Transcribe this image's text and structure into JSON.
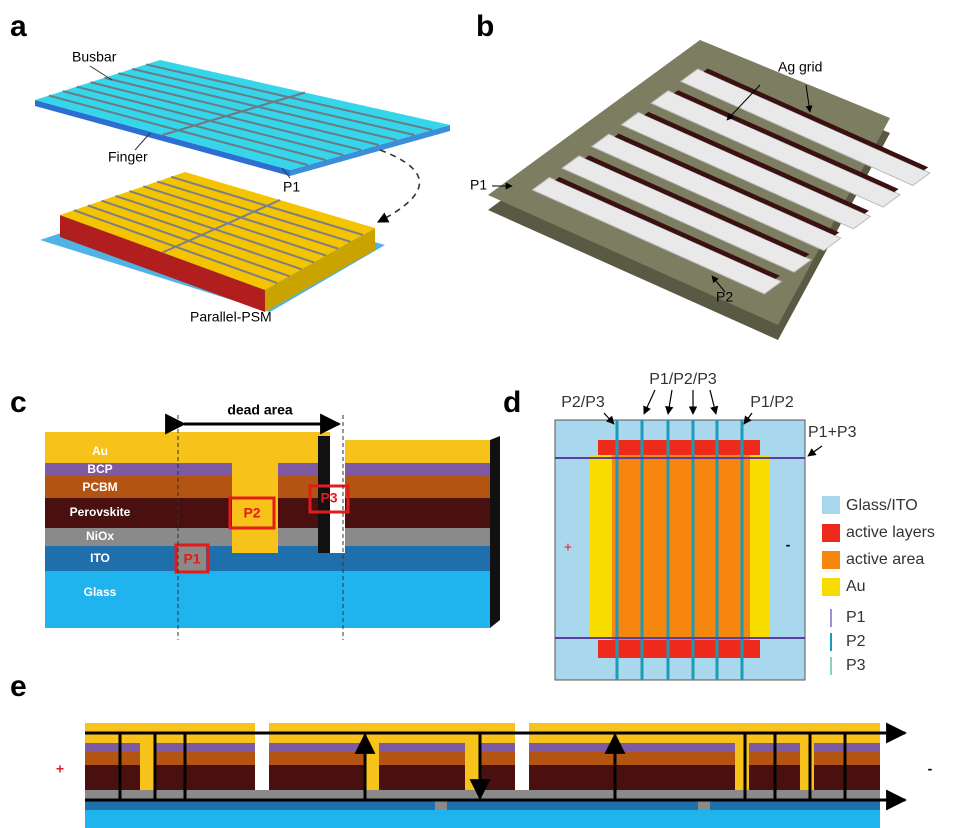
{
  "panels": [
    {
      "label": "a",
      "texts": [
        "Busbar",
        "Finger",
        "P1",
        "Parallel-PSM"
      ]
    },
    {
      "label": "b",
      "texts": [
        "Ag grid",
        "P1",
        "P2"
      ]
    },
    {
      "label": "c",
      "dimension": "dead area",
      "layers": [
        "Au",
        "BCP",
        "PCBM",
        "Perovskite",
        "NiOx",
        "ITO",
        "Glass"
      ],
      "scribes": [
        "P1",
        "P2",
        "P3"
      ]
    },
    {
      "label": "d",
      "scribes": [
        "P2/P3",
        "P1/P2/P3",
        "P1/P2",
        "P1+P3"
      ],
      "terminals": [
        "+",
        "-"
      ],
      "legend": [
        "Glass/ITO",
        "active layers",
        "active area",
        "Au",
        "P1",
        "P2",
        "P3"
      ]
    },
    {
      "label": "e",
      "terminals": [
        "+",
        "-"
      ]
    }
  ]
}
